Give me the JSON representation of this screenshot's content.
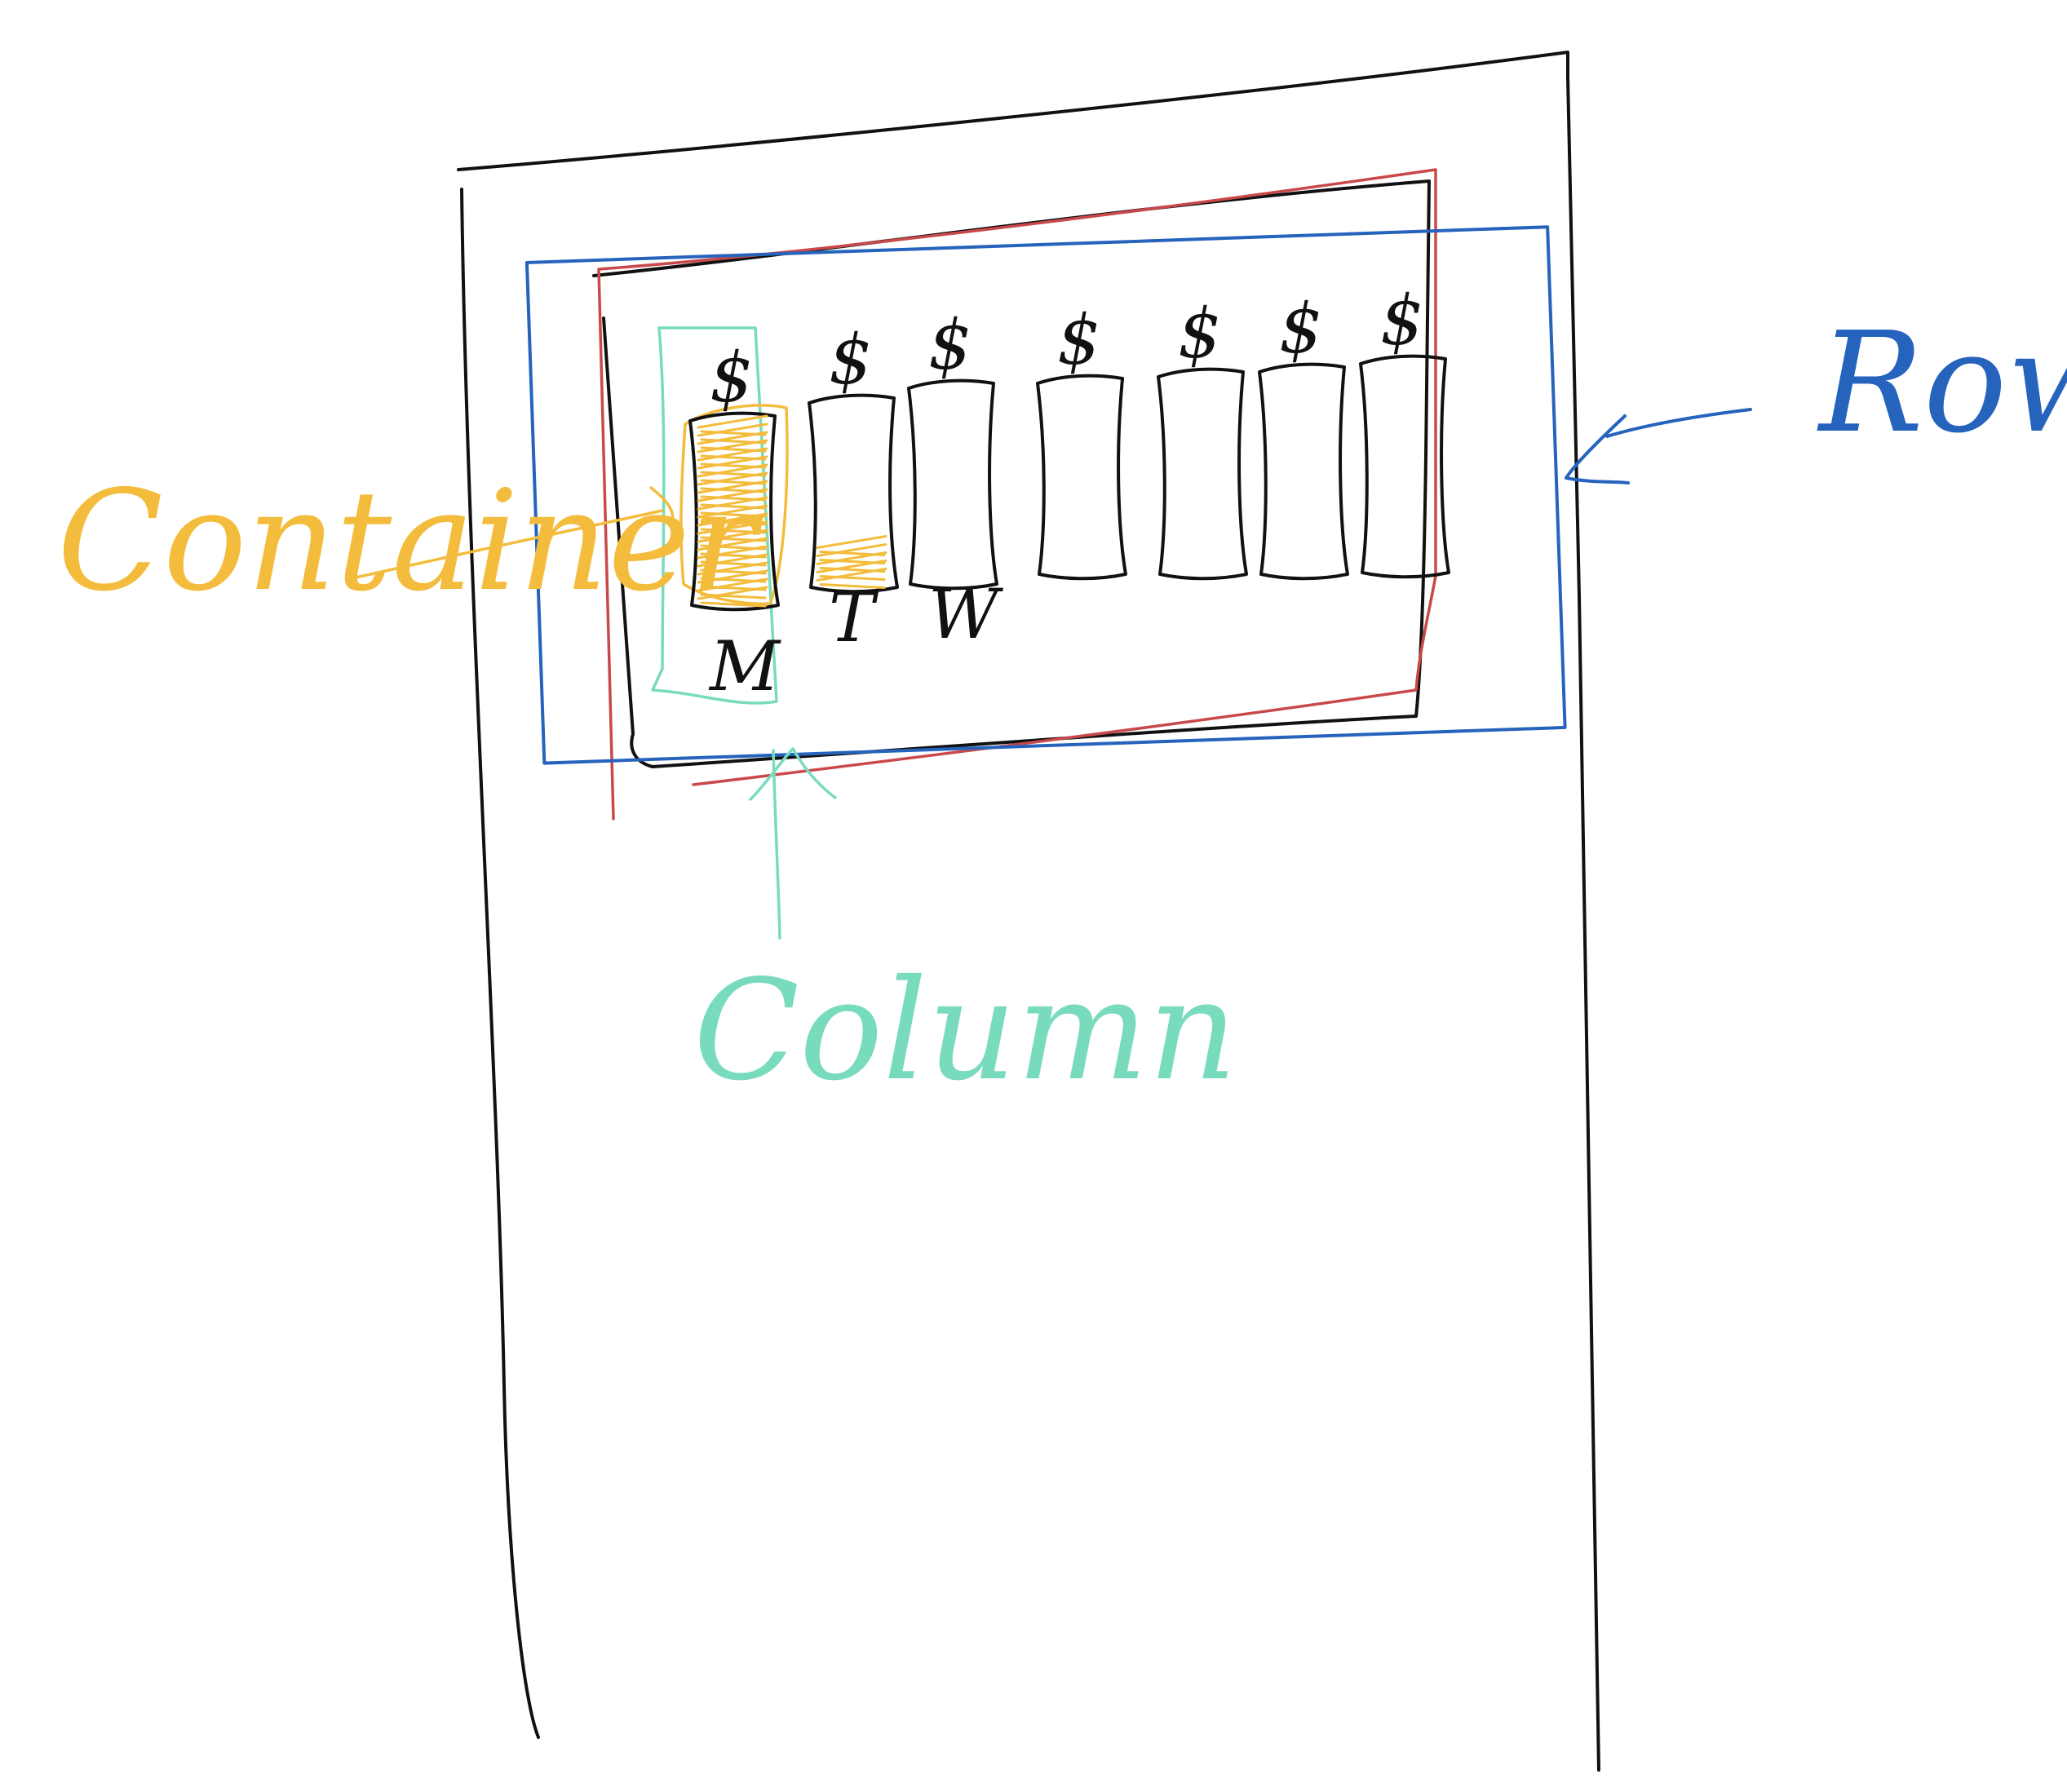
{
  "labels": {
    "container": "Container",
    "row": "Row",
    "column": "Column"
  },
  "bars": {
    "price_symbol": "$",
    "day_labels": [
      "M",
      "T",
      "W",
      "",
      "",
      "",
      ""
    ],
    "filled_levels": [
      1.0,
      0.25,
      0,
      0,
      0,
      0,
      0
    ]
  },
  "colors": {
    "ink": "#111111",
    "container": "#f4bc3c",
    "row": "#2563bd",
    "column": "#79dbbd",
    "outer_box": "#c9494b"
  }
}
